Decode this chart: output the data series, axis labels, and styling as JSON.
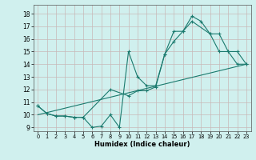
{
  "xlabel": "Humidex (Indice chaleur)",
  "xlim": [
    -0.5,
    23.5
  ],
  "ylim": [
    8.7,
    18.7
  ],
  "yticks": [
    9,
    10,
    11,
    12,
    13,
    14,
    15,
    16,
    17,
    18
  ],
  "xticks": [
    0,
    1,
    2,
    3,
    4,
    5,
    6,
    7,
    8,
    9,
    10,
    11,
    12,
    13,
    14,
    15,
    16,
    17,
    18,
    19,
    20,
    21,
    22,
    23
  ],
  "bg_color": "#d0f0ee",
  "grid_color": "#c8b8b8",
  "line_color": "#1a7a6e",
  "line1_x": [
    0,
    1,
    2,
    3,
    4,
    5,
    6,
    7,
    8,
    9,
    10,
    11,
    12,
    13,
    14,
    15,
    16,
    17,
    18,
    19,
    20,
    21,
    22,
    23
  ],
  "line1_y": [
    10.7,
    10.1,
    9.9,
    9.9,
    9.8,
    9.8,
    9.0,
    9.1,
    10.0,
    9.0,
    15.0,
    13.0,
    12.3,
    12.3,
    14.8,
    16.6,
    16.6,
    17.8,
    17.4,
    16.4,
    15.0,
    15.0,
    14.0,
    14.0
  ],
  "line2_x": [
    0,
    1,
    2,
    3,
    4,
    5,
    8,
    10,
    11,
    12,
    13,
    14,
    15,
    16,
    17,
    19,
    20,
    21,
    22,
    23
  ],
  "line2_y": [
    10.7,
    10.1,
    9.9,
    9.9,
    9.8,
    9.8,
    12.0,
    11.5,
    11.9,
    11.9,
    12.2,
    14.8,
    15.8,
    16.6,
    17.4,
    16.4,
    16.4,
    15.0,
    15.0,
    14.0
  ],
  "line3_x": [
    0,
    23
  ],
  "line3_y": [
    10.0,
    14.0
  ]
}
